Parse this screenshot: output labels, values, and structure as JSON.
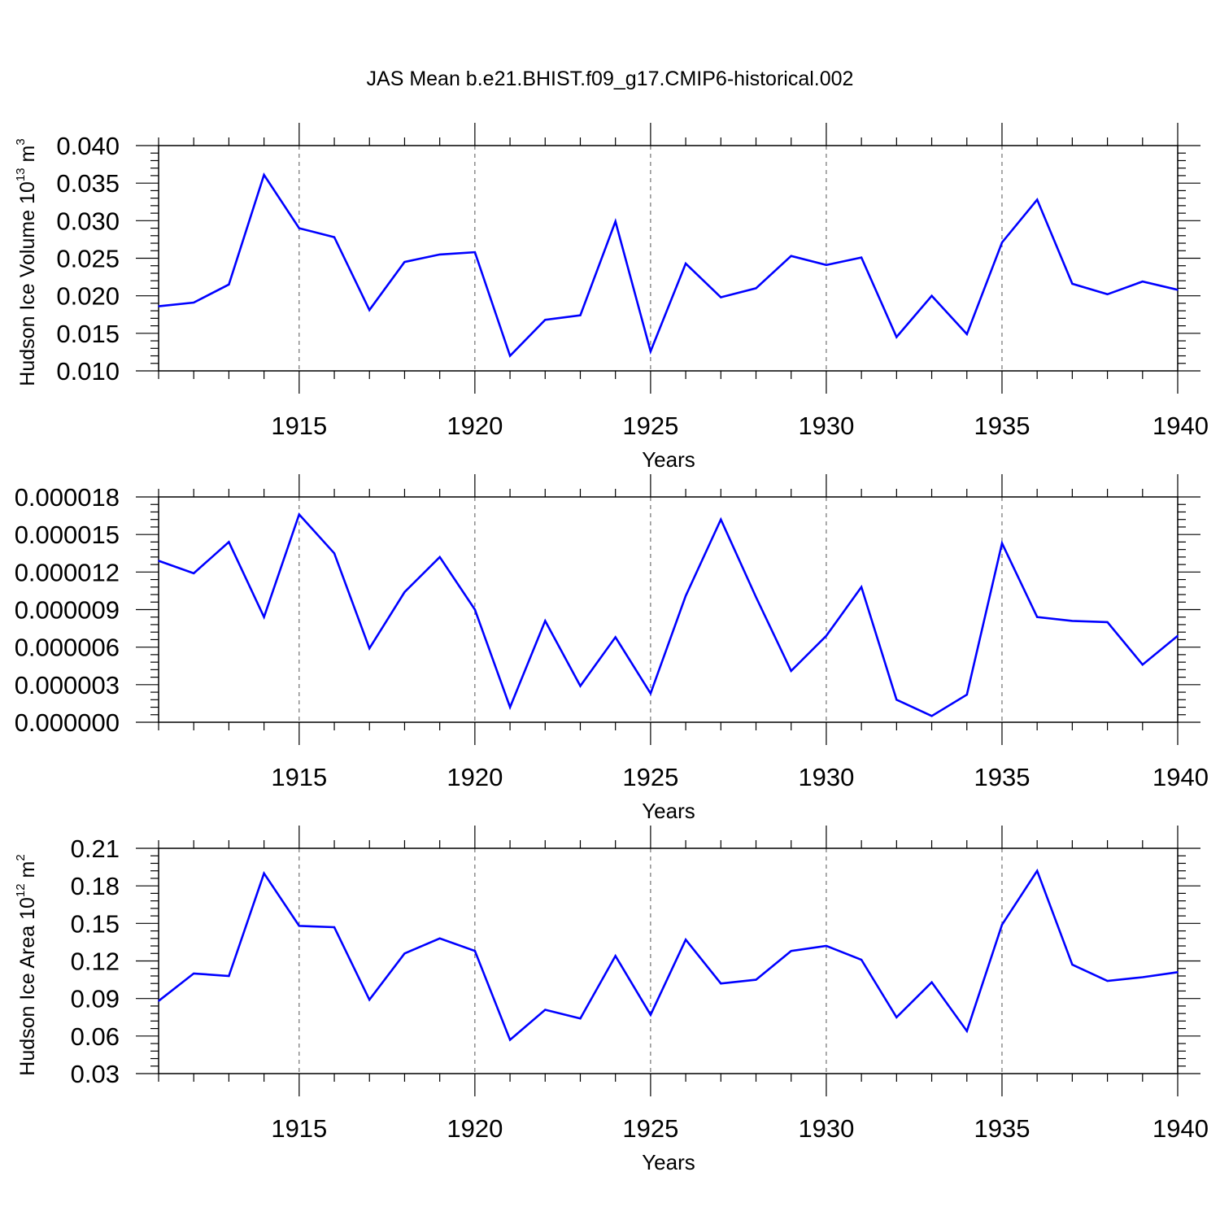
{
  "title": "JAS Mean b.e21.BHIST.f09_g17.CMIP6-historical.002",
  "colors": {
    "line": "#0000ff",
    "axis": "#000000",
    "grid": "#555555"
  },
  "chart_data": [
    {
      "type": "line",
      "ylabel": "Hudson Ice Volume 10",
      "ylabel_sup": "13",
      "ylabel_unit": "m",
      "ylabel_unit_sup": "3",
      "xlabel": "Years",
      "xlim": [
        1911,
        1940
      ],
      "ylim": [
        0.01,
        0.04
      ],
      "x_ticks": [
        "1915",
        "1920",
        "1925",
        "1930",
        "1935",
        "1940"
      ],
      "y_ticks": [
        "0.010",
        "0.015",
        "0.020",
        "0.025",
        "0.030",
        "0.035",
        "0.040"
      ],
      "grid": "vertical dashed at major ticks",
      "x": [
        1911,
        1912,
        1913,
        1914,
        1915,
        1916,
        1917,
        1918,
        1919,
        1920,
        1921,
        1922,
        1923,
        1924,
        1925,
        1926,
        1927,
        1928,
        1929,
        1930,
        1931,
        1932,
        1933,
        1934,
        1935,
        1936,
        1937,
        1938,
        1939,
        1940
      ],
      "values": [
        0.0186,
        0.0191,
        0.0215,
        0.0361,
        0.029,
        0.0278,
        0.0181,
        0.0245,
        0.0255,
        0.0258,
        0.012,
        0.0168,
        0.0174,
        0.0299,
        0.0126,
        0.0243,
        0.0198,
        0.021,
        0.0253,
        0.0241,
        0.0251,
        0.0145,
        0.02,
        0.0149,
        0.0271,
        0.0328,
        0.0216,
        0.0202,
        0.0219,
        0.0208
      ]
    },
    {
      "type": "line",
      "ylabel": "",
      "xlabel": "Years",
      "xlim": [
        1911,
        1940
      ],
      "ylim": [
        0.0,
        1.8e-05
      ],
      "x_ticks": [
        "1915",
        "1920",
        "1925",
        "1930",
        "1935",
        "1940"
      ],
      "y_ticks": [
        "0.000000",
        "0.000003",
        "0.000006",
        "0.000009",
        "0.000012",
        "0.000015",
        "0.000018"
      ],
      "grid": "vertical dashed at major ticks",
      "x": [
        1911,
        1912,
        1913,
        1914,
        1915,
        1916,
        1917,
        1918,
        1919,
        1920,
        1921,
        1922,
        1923,
        1924,
        1925,
        1926,
        1927,
        1928,
        1929,
        1930,
        1931,
        1932,
        1933,
        1934,
        1935,
        1936,
        1937,
        1938,
        1939,
        1940
      ],
      "values": [
        1.29e-05,
        1.19e-05,
        1.44e-05,
        8.4e-06,
        1.66e-05,
        1.35e-05,
        5.9e-06,
        1.04e-05,
        1.32e-05,
        9e-06,
        1.2e-06,
        8.1e-06,
        2.9e-06,
        6.8e-06,
        2.3e-06,
        1.01e-05,
        1.62e-05,
        1e-05,
        4.1e-06,
        6.9e-06,
        1.08e-05,
        1.8e-06,
        5e-07,
        2.2e-06,
        1.43e-05,
        8.4e-06,
        8.1e-06,
        8e-06,
        4.6e-06,
        6.9e-06
      ]
    },
    {
      "type": "line",
      "ylabel": "Hudson Ice Area 10",
      "ylabel_sup": "12",
      "ylabel_unit": "m",
      "ylabel_unit_sup": "2",
      "xlabel": "Years",
      "xlim": [
        1911,
        1940
      ],
      "ylim": [
        0.03,
        0.21
      ],
      "x_ticks": [
        "1915",
        "1920",
        "1925",
        "1930",
        "1935",
        "1940"
      ],
      "y_ticks": [
        "0.03",
        "0.06",
        "0.09",
        "0.12",
        "0.15",
        "0.18",
        "0.21"
      ],
      "grid": "vertical dashed at major ticks",
      "x": [
        1911,
        1912,
        1913,
        1914,
        1915,
        1916,
        1917,
        1918,
        1919,
        1920,
        1921,
        1922,
        1923,
        1924,
        1925,
        1926,
        1927,
        1928,
        1929,
        1930,
        1931,
        1932,
        1933,
        1934,
        1935,
        1936,
        1937,
        1938,
        1939,
        1940
      ],
      "values": [
        0.088,
        0.11,
        0.108,
        0.19,
        0.148,
        0.147,
        0.089,
        0.126,
        0.138,
        0.128,
        0.057,
        0.081,
        0.074,
        0.124,
        0.077,
        0.137,
        0.102,
        0.105,
        0.128,
        0.132,
        0.121,
        0.075,
        0.103,
        0.064,
        0.149,
        0.192,
        0.117,
        0.104,
        0.107,
        0.111
      ]
    }
  ]
}
